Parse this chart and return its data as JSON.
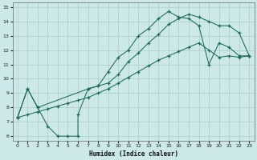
{
  "xlabel": "Humidex (Indice chaleur)",
  "bg_color": "#cce8e8",
  "line_color": "#1a6b5a",
  "grid_color": "#aacccc",
  "xlim": [
    -0.5,
    23.5
  ],
  "ylim": [
    5.7,
    15.3
  ],
  "xticks": [
    0,
    1,
    2,
    3,
    4,
    5,
    6,
    7,
    8,
    9,
    10,
    11,
    12,
    13,
    14,
    15,
    16,
    17,
    18,
    19,
    20,
    21,
    22,
    23
  ],
  "yticks": [
    6,
    7,
    8,
    9,
    10,
    11,
    12,
    13,
    14,
    15
  ],
  "line1_x": [
    0,
    1,
    2,
    3,
    4,
    5,
    6,
    6,
    7,
    8,
    9,
    10,
    11,
    12,
    13,
    14,
    15,
    16,
    17,
    18,
    19,
    20,
    21,
    22,
    23
  ],
  "line1_y": [
    7.3,
    9.3,
    8.0,
    6.7,
    6.0,
    6.0,
    6.0,
    7.5,
    9.3,
    9.5,
    10.5,
    11.5,
    12.0,
    13.0,
    13.5,
    14.2,
    14.7,
    14.3,
    14.2,
    13.7,
    11.0,
    12.5,
    12.2,
    11.6,
    11.6
  ],
  "line2_x": [
    0,
    1,
    2,
    7,
    8,
    9,
    10,
    11,
    12,
    13,
    14,
    15,
    16,
    17,
    18,
    19,
    20,
    21,
    22,
    23
  ],
  "line2_y": [
    7.3,
    9.3,
    8.0,
    9.3,
    9.5,
    9.7,
    10.3,
    11.2,
    11.8,
    12.5,
    13.1,
    13.8,
    14.2,
    14.5,
    14.3,
    14.0,
    13.7,
    13.7,
    13.2,
    11.6
  ],
  "line3_x": [
    0,
    1,
    2,
    3,
    4,
    5,
    6,
    7,
    8,
    9,
    10,
    11,
    12,
    13,
    14,
    15,
    16,
    17,
    18,
    19,
    20,
    21,
    22,
    23
  ],
  "line3_y": [
    7.3,
    7.5,
    7.7,
    7.9,
    8.1,
    8.3,
    8.5,
    8.7,
    9.0,
    9.3,
    9.7,
    10.1,
    10.5,
    10.9,
    11.3,
    11.6,
    11.9,
    12.2,
    12.5,
    12.0,
    11.5,
    11.6,
    11.5,
    11.6
  ]
}
